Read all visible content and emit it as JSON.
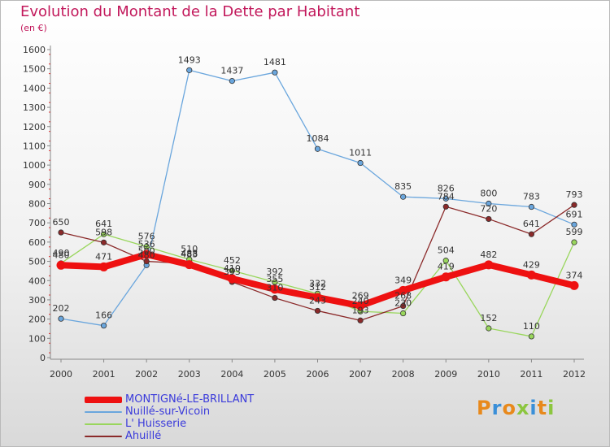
{
  "title": "Evolution du Montant de la Dette par Habitant",
  "subtitle": "(en €)",
  "logo": {
    "text": "Proxiti",
    "colors": [
      "#e8891c",
      "#3a8fd8",
      "#e8891c",
      "#8cc63f",
      "#3a8fd8",
      "#e8891c",
      "#8cc63f"
    ]
  },
  "chart_data": {
    "type": "line",
    "categories": [
      "2000",
      "2001",
      "2002",
      "2003",
      "2004",
      "2005",
      "2006",
      "2007",
      "2008",
      "2009",
      "2010",
      "2011",
      "2012"
    ],
    "ylim": [
      0,
      1600
    ],
    "ytick_step": 100,
    "grid": false,
    "series": [
      {
        "name": "MONTIGNé-LE-BRILLANT",
        "color": "#ee1111",
        "emphasis": true,
        "values": [
          480,
          471,
          536,
          483,
          410,
          355,
          312,
          269,
          349,
          419,
          482,
          429,
          374
        ]
      },
      {
        "name": "Nuillé-sur-Vicoin",
        "color": "#6aa6dd",
        "values": [
          202,
          166,
          480,
          1493,
          1437,
          1481,
          1084,
          1011,
          835,
          826,
          800,
          783,
          691
        ]
      },
      {
        "name": "L' Huisserie",
        "color": "#99d65c",
        "values": [
          490,
          641,
          576,
          510,
          452,
          392,
          332,
          240,
          230,
          504,
          152,
          110,
          599
        ]
      },
      {
        "name": "Ahuillé",
        "color": "#8b2a2a",
        "values": [
          650,
          598,
          500,
          488,
          393,
          310,
          243,
          193,
          268,
          784,
          720,
          641,
          793
        ]
      }
    ]
  }
}
